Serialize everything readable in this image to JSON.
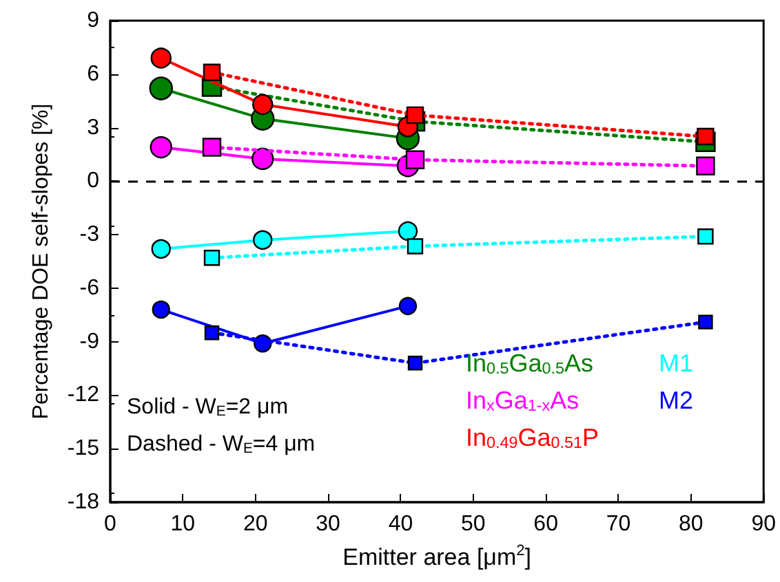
{
  "chart_data": {
    "type": "line",
    "xlabel": "Emitter area [μm$^{2}$]",
    "ylabel": "Percentage DOE self-slopes [%]",
    "xlim": [
      0,
      90
    ],
    "xticks": [
      0,
      10,
      20,
      30,
      40,
      50,
      60,
      70,
      80,
      90
    ],
    "ylim": [
      -18,
      9
    ],
    "yticks": [
      -18,
      -15,
      -12,
      -9,
      -6,
      -3,
      0,
      3,
      6,
      9
    ],
    "grid": false,
    "legend": "bottom right",
    "ref_lines": [
      {
        "axis": "y",
        "value": 0,
        "color": "#000000",
        "line_style": "dashed"
      }
    ],
    "annotations": [
      "Solid - W$_{E}$=2 μm",
      "Dashed - W$_{E}$=4 μm"
    ],
    "series": [
      {
        "name": "In$_{0.5}$Ga$_{0.5}$As",
        "color": "#008000",
        "marker": "circle",
        "line_style": "solid",
        "x": [
          7,
          21,
          41
        ],
        "values": [
          5.2,
          3.5,
          2.4
        ]
      },
      {
        "color": "#008000",
        "marker": "square",
        "line_style": "dotted",
        "x": [
          14,
          42,
          82
        ],
        "values": [
          5.3,
          3.35,
          2.2
        ]
      },
      {
        "name": "In$_{x}$Ga$_{1-x}$As",
        "color": "#ff00ff",
        "marker": "circle",
        "line_style": "solid",
        "x": [
          7,
          21,
          41
        ],
        "values": [
          1.9,
          1.25,
          0.85
        ]
      },
      {
        "color": "#ff00ff",
        "marker": "square",
        "line_style": "dotted",
        "x": [
          14,
          42,
          82
        ],
        "values": [
          1.9,
          1.2,
          0.85
        ]
      },
      {
        "name": "In$_{0.49}$Ga$_{0.51}$P",
        "color": "#ff0000",
        "marker": "circle",
        "line_style": "solid",
        "x": [
          7,
          21,
          41
        ],
        "values": [
          6.9,
          4.3,
          3.05
        ]
      },
      {
        "color": "#ff0000",
        "marker": "square",
        "line_style": "dotted",
        "x": [
          14,
          42,
          82
        ],
        "values": [
          6.1,
          3.7,
          2.5
        ]
      },
      {
        "name": "M1",
        "color": "#00ffff",
        "marker": "circle",
        "line_style": "solid",
        "x": [
          7,
          21,
          41
        ],
        "values": [
          -3.8,
          -3.3,
          -2.8
        ]
      },
      {
        "color": "#00ffff",
        "marker": "square",
        "line_style": "dotted",
        "x": [
          14,
          42,
          82
        ],
        "values": [
          -4.3,
          -3.65,
          -3.1
        ]
      },
      {
        "name": "M2",
        "color": "#0000ff",
        "marker": "circle",
        "line_style": "solid",
        "x": [
          7,
          21,
          41
        ],
        "values": [
          -7.2,
          -9.1,
          -7.0
        ]
      },
      {
        "color": "#0000ff",
        "marker": "square",
        "line_style": "dotted",
        "x": [
          14,
          42,
          82
        ],
        "values": [
          -8.5,
          -10.2,
          -7.9
        ]
      }
    ]
  }
}
